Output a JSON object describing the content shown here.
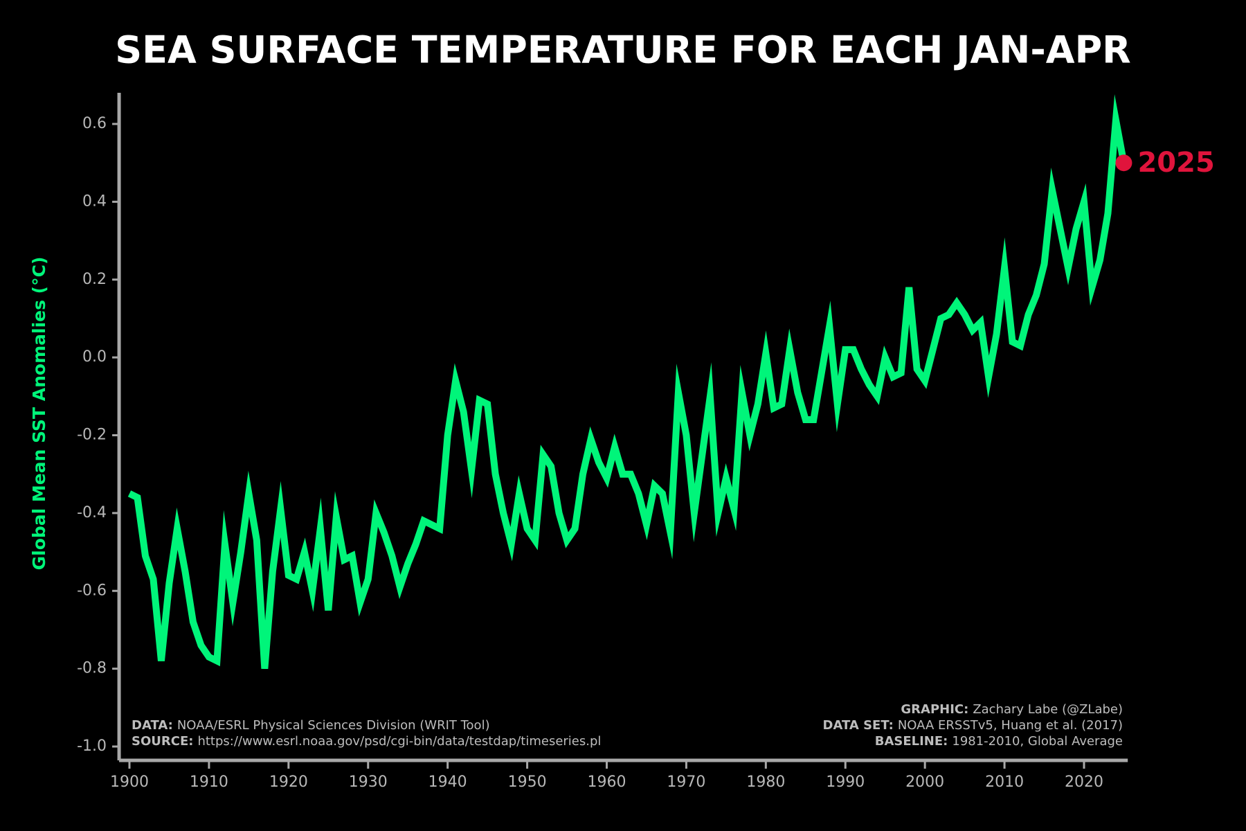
{
  "chart_data": {
    "type": "line",
    "title": "SEA SURFACE TEMPERATURE FOR EACH JAN-APR",
    "y_label": "Global Mean SST Anomalies (°C)",
    "x": [
      1900,
      1901,
      1902,
      1903,
      1904,
      1905,
      1906,
      1907,
      1908,
      1909,
      1910,
      1911,
      1912,
      1913,
      1914,
      1915,
      1916,
      1917,
      1918,
      1919,
      1920,
      1921,
      1922,
      1923,
      1924,
      1925,
      1926,
      1927,
      1928,
      1929,
      1930,
      1931,
      1932,
      1933,
      1934,
      1935,
      1936,
      1937,
      1938,
      1939,
      1940,
      1941,
      1942,
      1943,
      1944,
      1945,
      1946,
      1947,
      1948,
      1949,
      1950,
      1951,
      1952,
      1953,
      1954,
      1955,
      1956,
      1957,
      1958,
      1959,
      1960,
      1961,
      1962,
      1963,
      1964,
      1965,
      1966,
      1967,
      1968,
      1969,
      1970,
      1971,
      1972,
      1973,
      1974,
      1975,
      1976,
      1977,
      1978,
      1979,
      1980,
      1981,
      1982,
      1983,
      1984,
      1985,
      1986,
      1987,
      1988,
      1989,
      1990,
      1991,
      1992,
      1993,
      1994,
      1995,
      1996,
      1997,
      1998,
      1999,
      2000,
      2001,
      2002,
      2003,
      2004,
      2005,
      2006,
      2007,
      2008,
      2009,
      2010,
      2011,
      2012,
      2013,
      2014,
      2015,
      2016,
      2017,
      2018,
      2019,
      2020,
      2021,
      2022,
      2023,
      2024,
      2025
    ],
    "series": [
      {
        "color": "#00f57a",
        "values": [
          -0.35,
          -0.36,
          -0.51,
          -0.57,
          -0.78,
          -0.58,
          -0.44,
          -0.55,
          -0.68,
          -0.74,
          -0.77,
          -0.78,
          -0.48,
          -0.63,
          -0.5,
          -0.35,
          -0.47,
          -0.8,
          -0.55,
          -0.39,
          -0.56,
          -0.57,
          -0.5,
          -0.6,
          -0.44,
          -0.65,
          -0.41,
          -0.52,
          -0.51,
          -0.63,
          -0.57,
          -0.4,
          -0.45,
          -0.51,
          -0.59,
          -0.53,
          -0.48,
          -0.42,
          -0.43,
          -0.44,
          -0.2,
          -0.06,
          -0.14,
          -0.29,
          -0.11,
          -0.12,
          -0.3,
          -0.4,
          -0.48,
          -0.35,
          -0.44,
          -0.47,
          -0.25,
          -0.28,
          -0.4,
          -0.47,
          -0.44,
          -0.3,
          -0.21,
          -0.27,
          -0.31,
          -0.23,
          -0.3,
          -0.3,
          -0.35,
          -0.43,
          -0.33,
          -0.35,
          -0.45,
          -0.09,
          -0.2,
          -0.4,
          -0.25,
          -0.1,
          -0.4,
          -0.31,
          -0.39,
          -0.09,
          -0.2,
          -0.12,
          0.01,
          -0.13,
          -0.12,
          0.02,
          -0.09,
          -0.16,
          -0.16,
          -0.04,
          0.08,
          -0.12,
          0.02,
          0.02,
          -0.03,
          -0.07,
          -0.1,
          0.0,
          -0.05,
          -0.04,
          0.18,
          -0.03,
          -0.06,
          0.02,
          0.1,
          0.11,
          0.14,
          0.11,
          0.07,
          0.09,
          -0.05,
          0.06,
          0.23,
          0.04,
          0.03,
          0.11,
          0.16,
          0.24,
          0.43,
          0.33,
          0.23,
          0.33,
          0.4,
          0.18,
          0.25,
          0.37,
          0.61,
          0.5
        ]
      }
    ],
    "highlight": {
      "label": "2025",
      "color": "#e0143c"
    },
    "xlim": [
      1898.7,
      2025.5
    ],
    "ylim": [
      -1.0,
      0.68
    ],
    "xticks": [
      1900,
      1910,
      1920,
      1930,
      1940,
      1950,
      1960,
      1970,
      1980,
      1990,
      2000,
      2010,
      2020
    ],
    "yticks": [
      {
        "value": -1.0,
        "label": "-1.0"
      },
      {
        "value": -0.8,
        "label": "-0.8"
      },
      {
        "value": -0.6,
        "label": "-0.6"
      },
      {
        "value": -0.4,
        "label": "-0.4"
      },
      {
        "value": -0.2,
        "label": "-0.2"
      },
      {
        "value": 0.0,
        "label": "0.0"
      },
      {
        "value": 0.2,
        "label": "0.2"
      },
      {
        "value": 0.4,
        "label": "0.4"
      },
      {
        "value": 0.6,
        "label": "0.6"
      }
    ],
    "notes_left": [
      {
        "label": "DATA:",
        "text": "NOAA/ESRL Physical Sciences Division (WRIT Tool)"
      },
      {
        "label": "SOURCE:",
        "text": "https://www.esrl.noaa.gov/psd/cgi-bin/data/testdap/timeseries.pl"
      }
    ],
    "notes_right": [
      {
        "label": "GRAPHIC:",
        "text": "Zachary Labe (@ZLabe)"
      },
      {
        "label": "DATA SET:",
        "text": "NOAA ERSSTv5, Huang et al. (2017)"
      },
      {
        "label": "BASELINE:",
        "text": "1981-2010, Global Average"
      }
    ]
  }
}
